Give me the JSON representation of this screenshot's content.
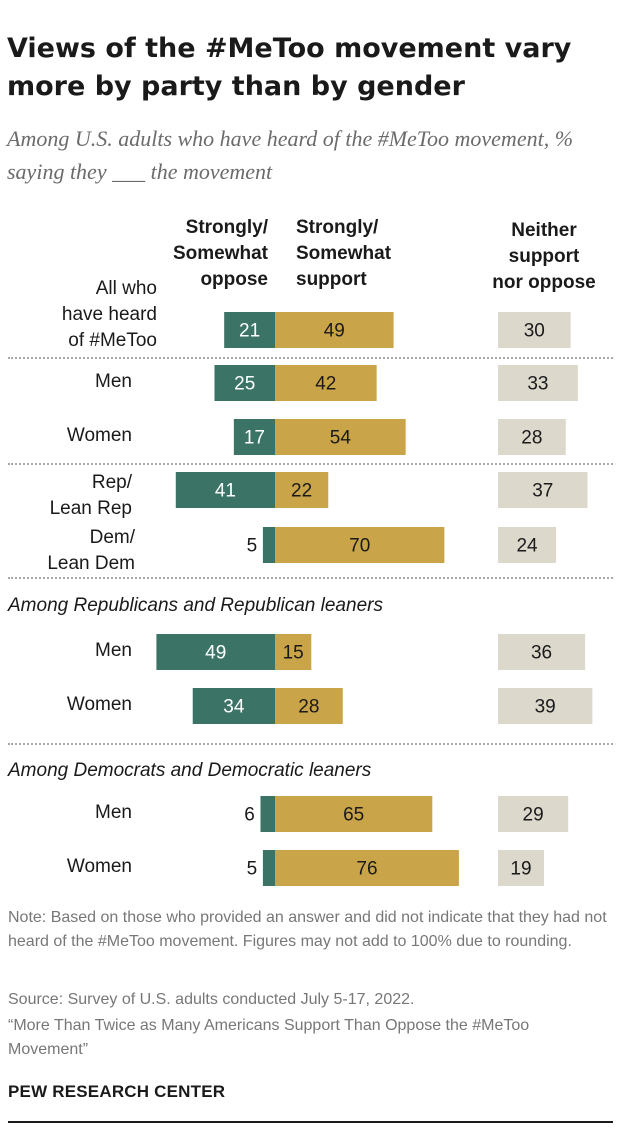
{
  "header": {
    "title": "Views of the #MeToo movement vary more by party than by gender",
    "subtitle": "Among U.S. adults who have heard of the #MeToo movement, % saying they ___ the movement"
  },
  "columns": {
    "oppose": [
      "Strongly/",
      "Somewhat",
      "oppose"
    ],
    "support": [
      "Strongly/",
      "Somewhat",
      "support"
    ],
    "neither": [
      "Neither",
      "support",
      "nor oppose"
    ]
  },
  "groups": {
    "rep": "Among Republicans and Republican leaners",
    "dem": "Among Democrats and Democratic leaners"
  },
  "colors": {
    "oppose": "#3b7466",
    "support": "#caa449",
    "neither": "#dcd8cc",
    "light_text": "#ffffff",
    "dark_text": "#1a1a1a"
  },
  "chart_data": {
    "type": "bar",
    "stacked": "diverging",
    "categories": [
      [
        "All who",
        "have heard",
        "of #MeToo"
      ],
      [
        "Men"
      ],
      [
        "Women"
      ],
      [
        "Rep/",
        "Lean Rep"
      ],
      [
        "Dem/",
        "Lean Dem"
      ],
      [
        "Men"
      ],
      [
        "Women"
      ],
      [
        "Men"
      ],
      [
        "Women"
      ]
    ],
    "series": [
      {
        "name": "Strongly/Somewhat oppose",
        "values": [
          21,
          25,
          17,
          41,
          5,
          49,
          34,
          6,
          5
        ]
      },
      {
        "name": "Strongly/Somewhat support",
        "values": [
          49,
          42,
          54,
          22,
          70,
          15,
          28,
          65,
          76
        ]
      },
      {
        "name": "Neither support nor oppose",
        "values": [
          30,
          33,
          28,
          37,
          24,
          36,
          39,
          29,
          19
        ]
      }
    ]
  },
  "footer": {
    "note": "Note: Based on those who provided an answer and did not indicate that they had not heard of the #MeToo movement. Figures may not add to 100% due to rounding.",
    "source": "Source: Survey of U.S. adults conducted July 5-17, 2022.",
    "report": "“More Than Twice as Many Americans Support Than Oppose the #MeToo Movement”",
    "brand": "PEW RESEARCH CENTER"
  }
}
